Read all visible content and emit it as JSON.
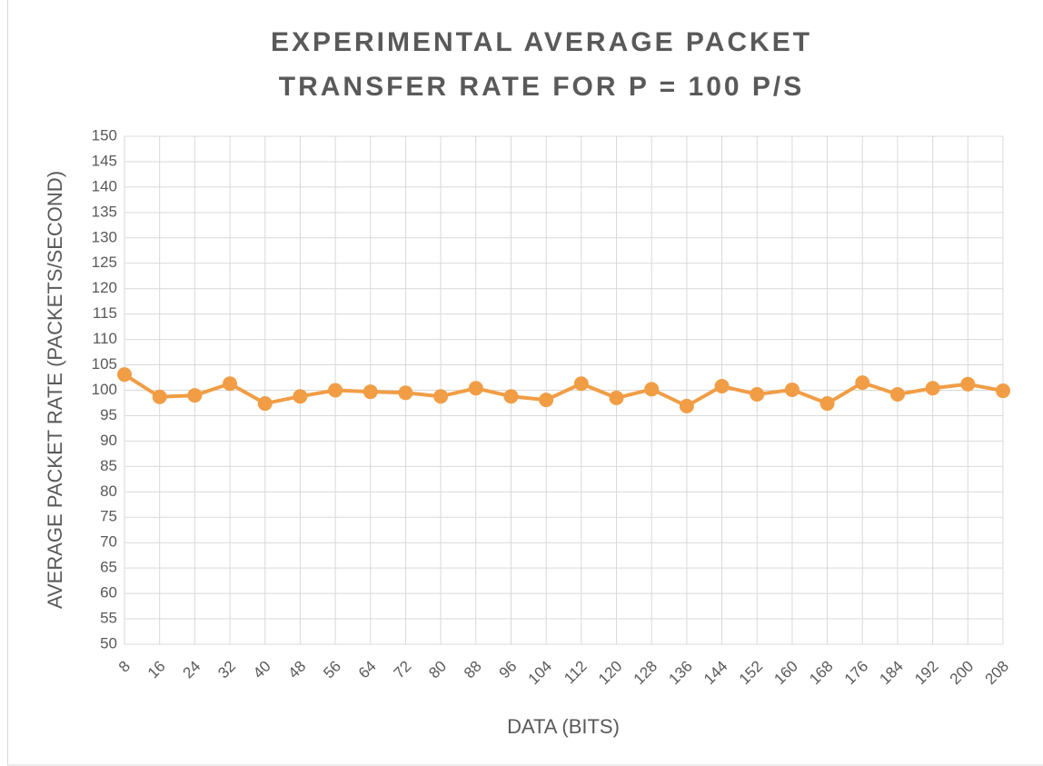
{
  "chart_data": {
    "type": "line",
    "title": "EXPERIMENTAL AVERAGE PACKET TRANSFER RATE FOR P = 100 P/S",
    "x_label": "DATA (BITS)",
    "y_label": "AVERAGE PACKET RATE (PACKETS/SECOND)",
    "categories": [
      8,
      16,
      24,
      32,
      40,
      48,
      56,
      64,
      72,
      80,
      88,
      96,
      104,
      112,
      120,
      128,
      136,
      144,
      152,
      160,
      168,
      176,
      184,
      192,
      200,
      208
    ],
    "series": [
      {
        "name": "Average Packet Rate",
        "color": "#f19d45",
        "values": [
          103.1,
          98.7,
          99,
          101.3,
          97.4,
          98.8,
          100,
          99.7,
          99.5,
          98.8,
          100.4,
          98.8,
          98.1,
          101.3,
          98.5,
          100.2,
          96.9,
          100.8,
          99.2,
          100.1,
          97.4,
          101.5,
          99.2,
          100.4,
          101.2,
          99.9
        ]
      }
    ],
    "ylim": [
      50,
      150
    ],
    "yticks": [
      50,
      55,
      60,
      65,
      70,
      75,
      80,
      85,
      90,
      95,
      100,
      105,
      110,
      115,
      120,
      125,
      130,
      135,
      140,
      145,
      150
    ],
    "grid": true
  }
}
